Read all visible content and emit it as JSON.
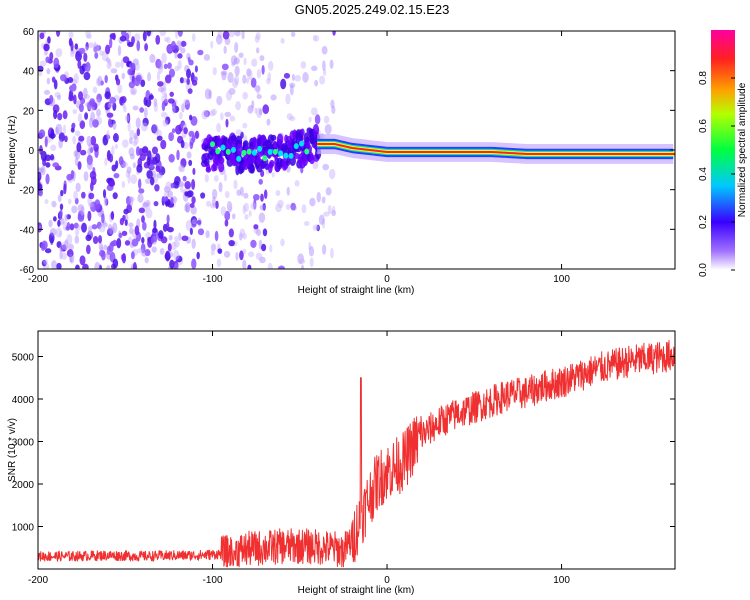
{
  "title": "GN05.2025.249.02.15.E23",
  "chart_data": [
    {
      "type": "heatmap",
      "title": "GN05.2025.249.02.15.E23",
      "xlabel": "Height of straight line (km)",
      "ylabel": "Frequency (Hz)",
      "xlim": [
        -200,
        165
      ],
      "ylim": [
        -60,
        60
      ],
      "x_ticks": [
        "-200",
        "-100",
        "0",
        "100"
      ],
      "y_ticks": [
        "-60",
        "-40",
        "-20",
        "0",
        "20",
        "40",
        "60"
      ],
      "colorbar": {
        "label": "Normalized spectral amplitude",
        "range": [
          0,
          1
        ],
        "ticks": [
          "0.0",
          "0.2",
          "0.4",
          "0.6",
          "0.8"
        ],
        "colormap": [
          "#ffffff",
          "#7a00ff",
          "#0000ff",
          "#00ffff",
          "#00ff00",
          "#ffff00",
          "#ff7f00",
          "#ff0000",
          "#ff00a0"
        ]
      },
      "ridge_points_km_hz": [
        [
          -100,
          0
        ],
        [
          -90,
          -2
        ],
        [
          -80,
          -3
        ],
        [
          -70,
          -2
        ],
        [
          -60,
          -1
        ],
        [
          -50,
          1
        ],
        [
          -40,
          3
        ],
        [
          -30,
          3
        ],
        [
          -20,
          1
        ],
        [
          -10,
          0
        ],
        [
          0,
          -1
        ],
        [
          20,
          -1
        ],
        [
          40,
          -1
        ],
        [
          60,
          -1
        ],
        [
          80,
          -2
        ],
        [
          100,
          -2
        ],
        [
          120,
          -2
        ],
        [
          140,
          -2
        ],
        [
          165,
          -2
        ]
      ]
    },
    {
      "type": "line",
      "xlabel": "Height of straight line (km)",
      "ylabel": "SNR (10 * v/v)",
      "xlim": [
        -200,
        165
      ],
      "ylim": [
        0,
        5600
      ],
      "x_ticks": [
        "-200",
        "-100",
        "0",
        "100"
      ],
      "y_ticks": [
        "1000",
        "2000",
        "3000",
        "4000",
        "5000"
      ],
      "color": "#f03030",
      "series": [
        {
          "name": "SNR",
          "x": [
            -200,
            -180,
            -160,
            -140,
            -120,
            -110,
            -100,
            -90,
            -80,
            -70,
            -60,
            -50,
            -40,
            -30,
            -25,
            -20,
            -15,
            -10,
            -5,
            0,
            5,
            10,
            15,
            20,
            25,
            30,
            40,
            50,
            60,
            70,
            80,
            90,
            100,
            110,
            120,
            130,
            140,
            150,
            160,
            165
          ],
          "values": [
            300,
            300,
            320,
            300,
            320,
            320,
            340,
            380,
            470,
            500,
            530,
            540,
            520,
            480,
            420,
            700,
            1200,
            1700,
            2100,
            2300,
            2400,
            2550,
            2900,
            3150,
            3300,
            3450,
            3650,
            3800,
            3950,
            4100,
            4150,
            4300,
            4400,
            4550,
            4700,
            4800,
            4900,
            4950,
            5000,
            5050
          ]
        }
      ],
      "spike": {
        "x": -15,
        "value": 4500
      }
    }
  ]
}
